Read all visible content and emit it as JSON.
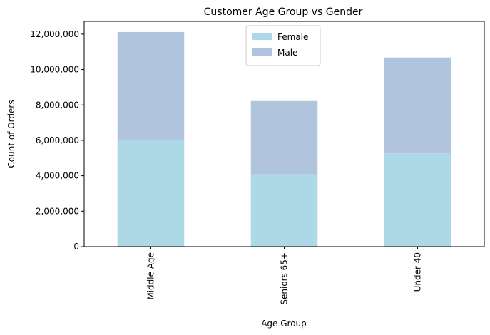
{
  "chart_data": {
    "type": "bar",
    "stacked": true,
    "title": "Customer Age Group vs Gender",
    "xlabel": "Age Group",
    "ylabel": "Count of Orders",
    "categories": [
      "Middle Age",
      "Seniors 65+",
      "Under 40"
    ],
    "series": [
      {
        "name": "Female",
        "values": [
          6040000,
          4080000,
          5260000
        ],
        "color": "#add8e6"
      },
      {
        "name": "Male",
        "values": [
          6080000,
          4140000,
          5420000
        ],
        "color": "#b0c4de"
      }
    ],
    "ylim": [
      0,
      12720000
    ],
    "yticks": [
      0,
      2000000,
      4000000,
      6000000,
      8000000,
      10000000,
      12000000
    ],
    "ytick_labels": [
      "0",
      "2,000,000",
      "4,000,000",
      "6,000,000",
      "8,000,000",
      "10,000,000",
      "12,000,000"
    ],
    "xtick_rotation": "vertical",
    "grid": false,
    "legend_position": "top-center"
  }
}
